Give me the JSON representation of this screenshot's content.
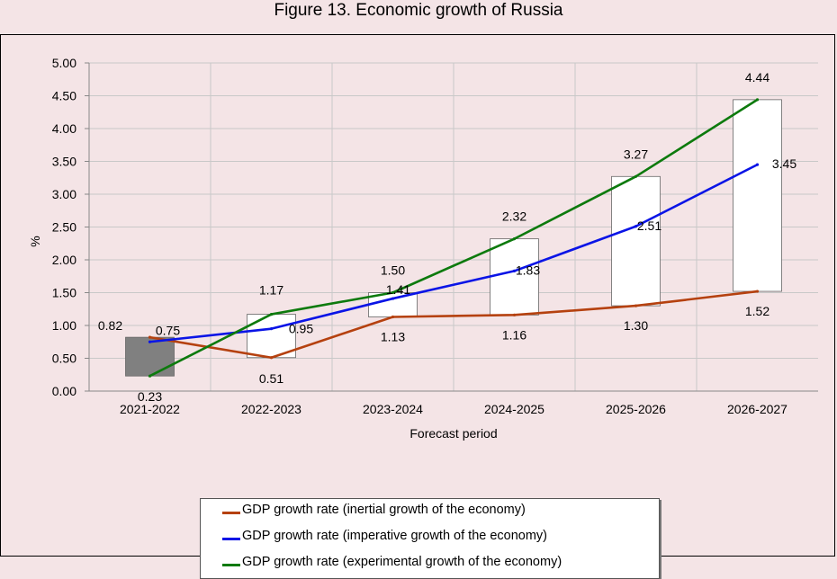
{
  "title": "Figure 13. Economic growth of Russia",
  "chart_data": {
    "type": "line",
    "title": "Figure 13. Economic growth of Russia",
    "xlabel": "Forecast period",
    "ylabel": "%",
    "ylim": [
      0,
      5
    ],
    "yticks": [
      "0.00",
      "0.50",
      "1.00",
      "1.50",
      "2.00",
      "2.50",
      "3.00",
      "3.50",
      "4.00",
      "4.50",
      "5.00"
    ],
    "grid": true,
    "categories": [
      "2021-2022",
      "2022-2023",
      "2023-2024",
      "2024-2025",
      "2025-2026",
      "2026-2027"
    ],
    "series": [
      {
        "name": "GDP growth rate (inertial growth of the economy)",
        "color": "#b5410f",
        "values": [
          0.82,
          0.51,
          1.13,
          1.16,
          1.3,
          1.52
        ],
        "labels": [
          "0.82",
          "0.51",
          "1.13",
          "1.16",
          "1.30",
          "1.52"
        ]
      },
      {
        "name": "GDP growth rate (imperative growth of the economy)",
        "color": "#0a14e6",
        "values": [
          0.75,
          0.95,
          1.41,
          1.83,
          2.51,
          3.45
        ],
        "labels": [
          "0.75",
          "0.95",
          "1.41",
          "1.83",
          "2.51",
          "3.45"
        ]
      },
      {
        "name": "GDP growth rate (experimental growth of the economy)",
        "color": "#0d7a0d",
        "values": [
          0.23,
          1.17,
          1.5,
          2.32,
          3.27,
          4.44
        ],
        "labels": [
          "0.23",
          "1.17",
          "1.50",
          "2.32",
          "3.27",
          "4.44"
        ]
      }
    ],
    "range_boxes": [
      {
        "low": 0.23,
        "high": 0.82,
        "fill": "#808080"
      },
      {
        "low": 0.51,
        "high": 1.17,
        "fill": "#ffffff"
      },
      {
        "low": 1.13,
        "high": 1.5,
        "fill": "#ffffff"
      },
      {
        "low": 1.16,
        "high": 2.32,
        "fill": "#ffffff"
      },
      {
        "low": 1.3,
        "high": 3.27,
        "fill": "#ffffff"
      },
      {
        "low": 1.52,
        "high": 4.44,
        "fill": "#ffffff"
      }
    ],
    "legend_position": "bottom"
  }
}
